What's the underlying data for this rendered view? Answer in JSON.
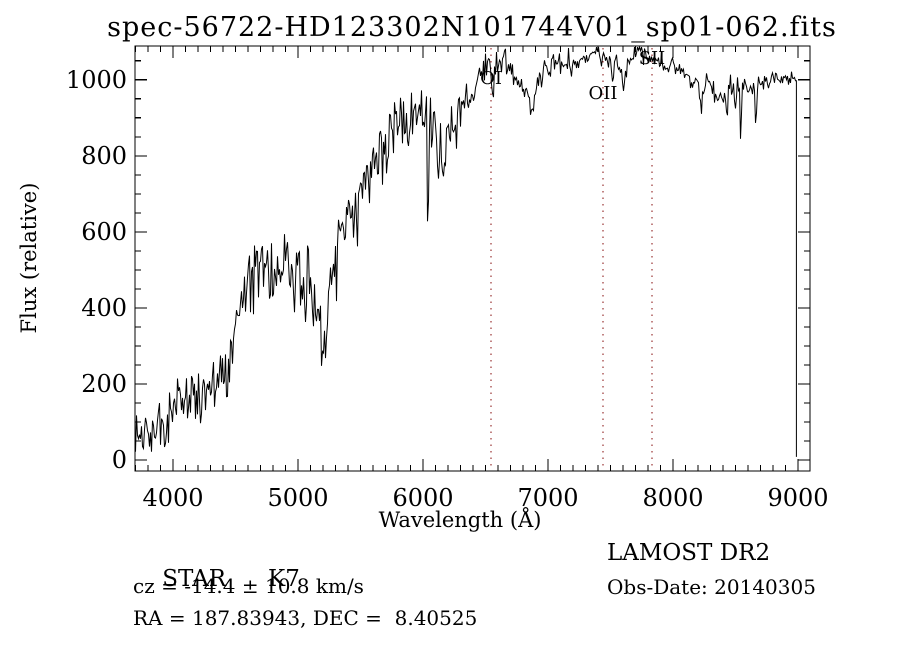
{
  "title": "spec-56722-HD123302N101744V01_sp01-062.fits",
  "annotations": {
    "object_class": "STAR",
    "object_subclass": "K7",
    "survey": "LAMOST DR2",
    "cz": "cz = -14.4 ± 10.8 km/s",
    "obs_date": "Obs-Date: 20140305",
    "ra_dec": "RA = 187.83943, DEC =  8.40525"
  },
  "chart_data": {
    "type": "line",
    "title": "spec-56722-HD123302N101744V01_sp01-062.fits",
    "xlabel": "Wavelength (Å)",
    "ylabel": "Flux (relative)",
    "xlim": [
      3696,
      9096
    ],
    "ylim": [
      -29,
      1089
    ],
    "grid": false,
    "line_color": "#000000",
    "background_color": "#ffffff",
    "x_ticks": {
      "values": [
        4000,
        5000,
        6000,
        7000,
        8000,
        9000
      ],
      "labels": [
        "4000",
        "5000",
        "6000",
        "7000",
        "8000",
        "9000"
      ],
      "minor_step": 100
    },
    "y_ticks": {
      "values": [
        0,
        200,
        400,
        600,
        800,
        1000
      ],
      "labels": [
        "0",
        "200",
        "400",
        "600",
        "800",
        "1000"
      ],
      "minor_step": 50
    },
    "marked_lines": {
      "color": "#993333",
      "items": [
        {
          "label": "OI",
          "wavelength": 6544,
          "label_flux": 1005
        },
        {
          "label": "OII",
          "wavelength": 7440,
          "label_flux": 965
        },
        {
          "label": "SII",
          "wavelength": 7832,
          "label_flux": 1058
        }
      ]
    },
    "series": {
      "name": "spectrum",
      "x_start": 3700,
      "x_end": 8985,
      "step": 8,
      "end_drop_flux": 8,
      "clip_flux": [
        -18,
        1086
      ],
      "envelope": [
        [
          3700,
          45
        ],
        [
          3760,
          75
        ],
        [
          3810,
          60
        ],
        [
          3860,
          90
        ],
        [
          3920,
          100
        ],
        [
          3980,
          125
        ],
        [
          4040,
          160
        ],
        [
          4100,
          175
        ],
        [
          4150,
          165
        ],
        [
          4220,
          185
        ],
        [
          4300,
          200
        ],
        [
          4380,
          225
        ],
        [
          4440,
          260
        ],
        [
          4500,
          330
        ],
        [
          4560,
          410
        ],
        [
          4620,
          480
        ],
        [
          4680,
          540
        ],
        [
          4720,
          550
        ],
        [
          4760,
          525
        ],
        [
          4800,
          485
        ],
        [
          4850,
          520
        ],
        [
          4900,
          548
        ],
        [
          4950,
          520
        ],
        [
          5000,
          498
        ],
        [
          5060,
          468
        ],
        [
          5110,
          452
        ],
        [
          5160,
          400
        ],
        [
          5185,
          318
        ],
        [
          5210,
          330
        ],
        [
          5250,
          430
        ],
        [
          5300,
          560
        ],
        [
          5360,
          610
        ],
        [
          5430,
          650
        ],
        [
          5500,
          710
        ],
        [
          5580,
          770
        ],
        [
          5660,
          820
        ],
        [
          5740,
          865
        ],
        [
          5820,
          895
        ],
        [
          5900,
          910
        ],
        [
          5980,
          930
        ],
        [
          6040,
          925
        ],
        [
          6100,
          865
        ],
        [
          6160,
          810
        ],
        [
          6210,
          875
        ],
        [
          6260,
          905
        ],
        [
          6310,
          948
        ],
        [
          6360,
          940
        ],
        [
          6420,
          980
        ],
        [
          6470,
          1015
        ],
        [
          6520,
          1040
        ],
        [
          6560,
          1015
        ],
        [
          6610,
          1040
        ],
        [
          6660,
          1048
        ],
        [
          6710,
          1032
        ],
        [
          6760,
          995
        ],
        [
          6810,
          968
        ],
        [
          6870,
          952
        ],
        [
          6920,
          988
        ],
        [
          6980,
          1025
        ],
        [
          7050,
          1055
        ],
        [
          7120,
          1042
        ],
        [
          7190,
          1050
        ],
        [
          7260,
          1048
        ],
        [
          7330,
          1062
        ],
        [
          7400,
          1072
        ],
        [
          7450,
          1062
        ],
        [
          7520,
          1035
        ],
        [
          7570,
          1045
        ],
        [
          7620,
          1030
        ],
        [
          7680,
          1062
        ],
        [
          7740,
          1070
        ],
        [
          7800,
          1062
        ],
        [
          7860,
          1055
        ],
        [
          7920,
          1048
        ],
        [
          7980,
          1040
        ],
        [
          8040,
          1025
        ],
        [
          8100,
          1005
        ],
        [
          8160,
          988
        ],
        [
          8220,
          995
        ],
        [
          8280,
          995
        ],
        [
          8340,
          965
        ],
        [
          8400,
          950
        ],
        [
          8460,
          988
        ],
        [
          8520,
          978
        ],
        [
          8580,
          988
        ],
        [
          8640,
          975
        ],
        [
          8700,
          995
        ],
        [
          8760,
          1005
        ],
        [
          8820,
          1000
        ],
        [
          8880,
          998
        ],
        [
          8940,
          1000
        ],
        [
          8985,
          1000
        ]
      ],
      "absorption_features": [
        [
          3933,
          70,
          8
        ],
        [
          4227,
          80,
          7
        ],
        [
          4340,
          60,
          8
        ],
        [
          4861,
          130,
          7
        ],
        [
          5893,
          90,
          7
        ],
        [
          6040,
          520,
          5
        ],
        [
          6122,
          140,
          9
        ],
        [
          6162,
          120,
          8
        ],
        [
          6563,
          70,
          7
        ],
        [
          6870,
          60,
          12
        ],
        [
          7190,
          40,
          15
        ],
        [
          7600,
          50,
          18
        ],
        [
          8230,
          60,
          18
        ],
        [
          8430,
          70,
          10
        ],
        [
          8498,
          60,
          7
        ],
        [
          8542,
          150,
          7
        ],
        [
          8662,
          100,
          7
        ],
        [
          8760,
          40,
          8
        ]
      ],
      "noise_profile": [
        [
          3700,
          33
        ],
        [
          4000,
          30
        ],
        [
          4300,
          28
        ],
        [
          4600,
          38
        ],
        [
          5000,
          38
        ],
        [
          5200,
          36
        ],
        [
          5500,
          36
        ],
        [
          5800,
          30
        ],
        [
          6100,
          30
        ],
        [
          6400,
          22
        ],
        [
          6700,
          16
        ],
        [
          7000,
          14
        ],
        [
          7500,
          13
        ],
        [
          8000,
          12
        ],
        [
          8500,
          13
        ],
        [
          9000,
          9
        ]
      ]
    }
  }
}
